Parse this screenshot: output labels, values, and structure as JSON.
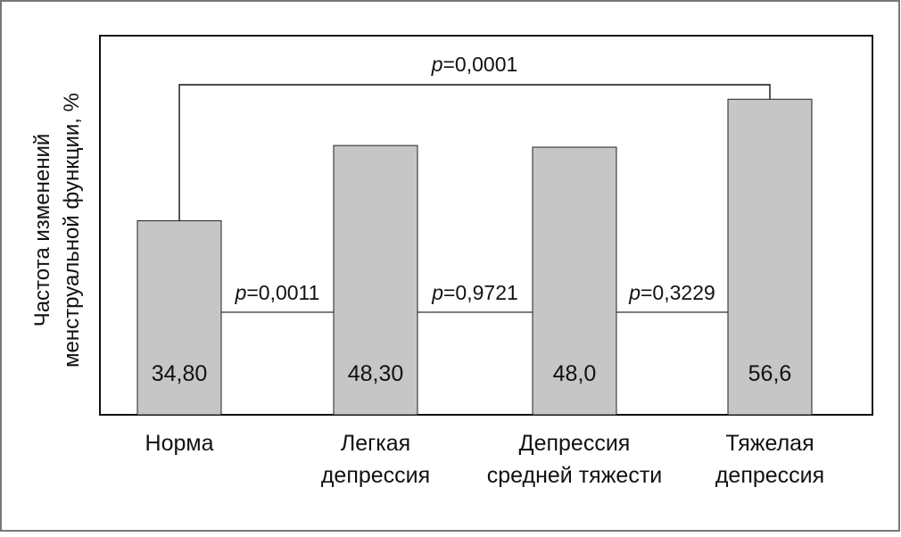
{
  "chart_data": {
    "type": "bar",
    "title": "",
    "xlabel": "",
    "ylabel": [
      "Частота изменений",
      "менструальной функции, %"
    ],
    "categories": [
      [
        "Норма"
      ],
      [
        "Легкая",
        "депрессия"
      ],
      [
        "Депрессия",
        "средней тяжести"
      ],
      [
        "Тяжелая",
        "депрессия"
      ]
    ],
    "values": [
      34.8,
      48.3,
      48.0,
      56.6
    ],
    "value_labels": [
      "34,80",
      "48,30",
      "48,0",
      "56,6"
    ],
    "ylim": [
      0,
      68
    ],
    "grid": false,
    "colors": {
      "bar": "#c6c6c6",
      "stroke": "#222222",
      "frame": "#111111",
      "outer_border": "#777777"
    },
    "comparisons": [
      {
        "from": 0,
        "to": 1,
        "p_prefix": "p",
        "p_value": "=0,0011"
      },
      {
        "from": 1,
        "to": 2,
        "p_prefix": "p",
        "p_value": "=0,9721"
      },
      {
        "from": 2,
        "to": 3,
        "p_prefix": "p",
        "p_value": "=0,3229"
      },
      {
        "from": 0,
        "to": 3,
        "p_prefix": "p",
        "p_value": "=0,0001",
        "bracket": true
      }
    ]
  }
}
